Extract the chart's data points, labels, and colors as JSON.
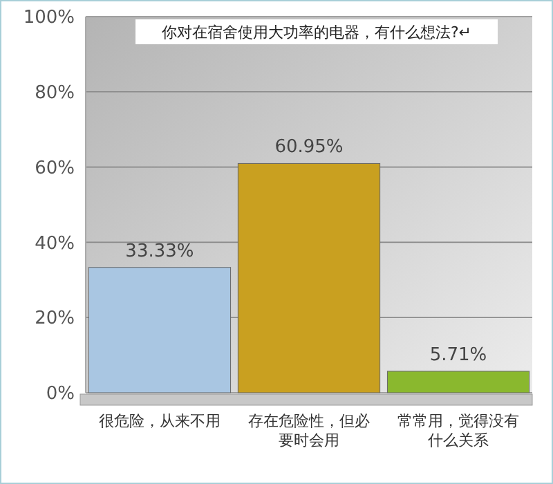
{
  "chart_data": {
    "type": "bar",
    "title": "你对在宿舍使用大功率的电器，有什么想法?↵",
    "categories": [
      "很危险，从来不用",
      "存在危险性，但必要时会用",
      "常常用，觉得没有什么关系"
    ],
    "values": [
      33.33,
      60.95,
      5.71
    ],
    "colors": [
      "#a9c6e2",
      "#c9a020",
      "#8ab82e"
    ],
    "ylim": [
      0,
      100
    ],
    "yticks": [
      {
        "value": 0,
        "label": "0%"
      },
      {
        "value": 20,
        "label": "20%"
      },
      {
        "value": 40,
        "label": "40%"
      },
      {
        "value": 60,
        "label": "60%"
      },
      {
        "value": 80,
        "label": "80%"
      },
      {
        "value": 100,
        "label": "100%"
      }
    ],
    "grid": true,
    "value_labels": [
      "33.33%",
      "60.95%",
      "5.71%"
    ]
  }
}
